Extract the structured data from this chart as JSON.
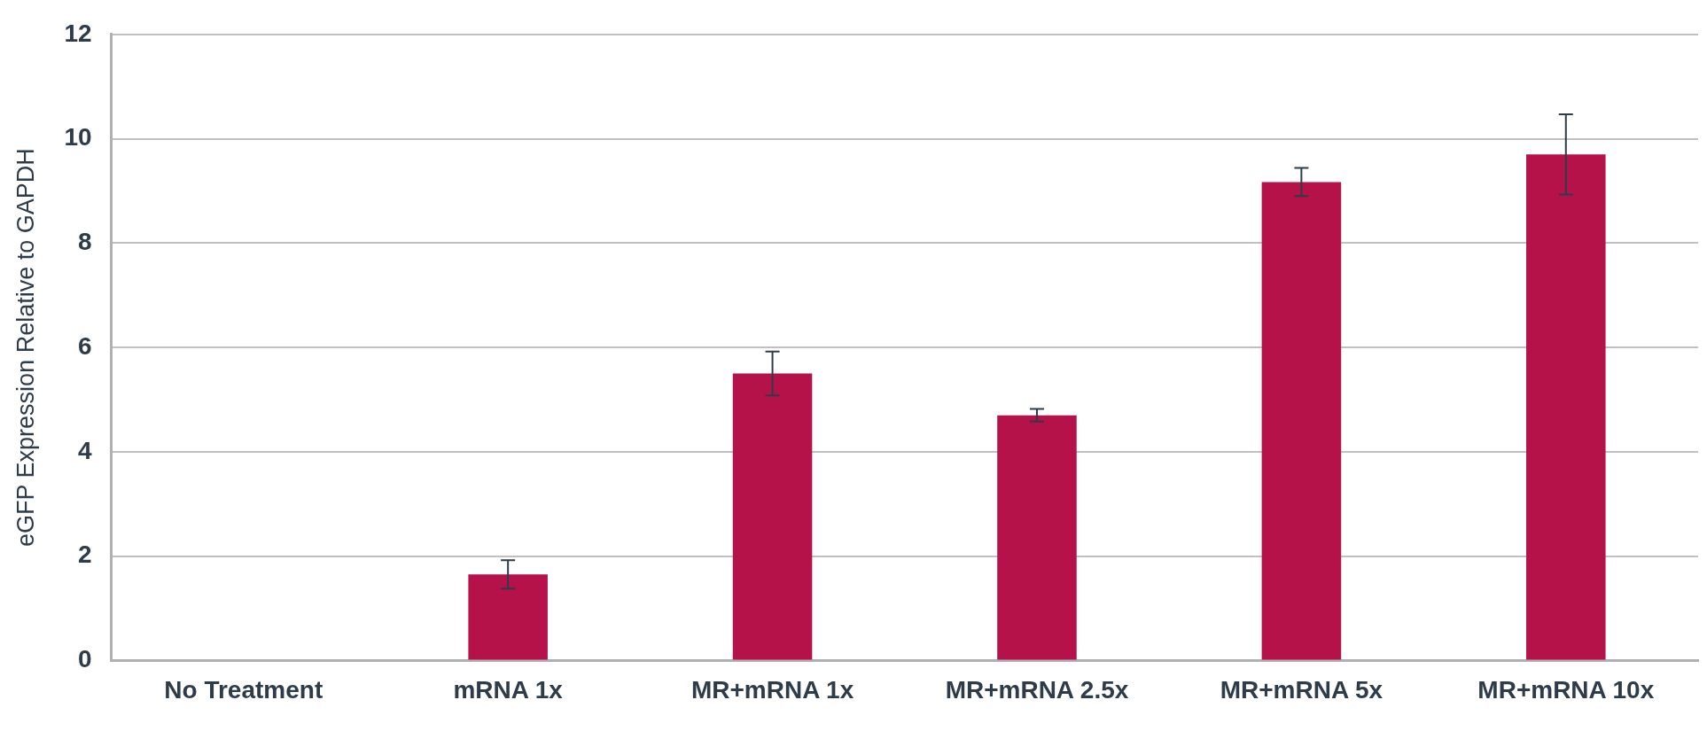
{
  "chart_data": {
    "type": "bar",
    "ylabel": "eGFP Expression Relative to GAPDH",
    "categories": [
      "No Treatment",
      "mRNA 1x",
      "MR+mRNA 1x",
      "MR+mRNA 2.5x",
      "MR+mRNA 5x",
      "MR+mRNA 10x"
    ],
    "values": [
      0,
      1.65,
      5.5,
      4.7,
      9.17,
      9.7
    ],
    "errors": [
      null,
      0.27,
      0.42,
      0.12,
      0.27,
      0.77
    ],
    "color": "#b5124a",
    "ylim": [
      0,
      12
    ],
    "yticks": [
      0,
      2,
      4,
      6,
      8,
      10,
      12
    ],
    "grid": "y",
    "legend": false
  }
}
